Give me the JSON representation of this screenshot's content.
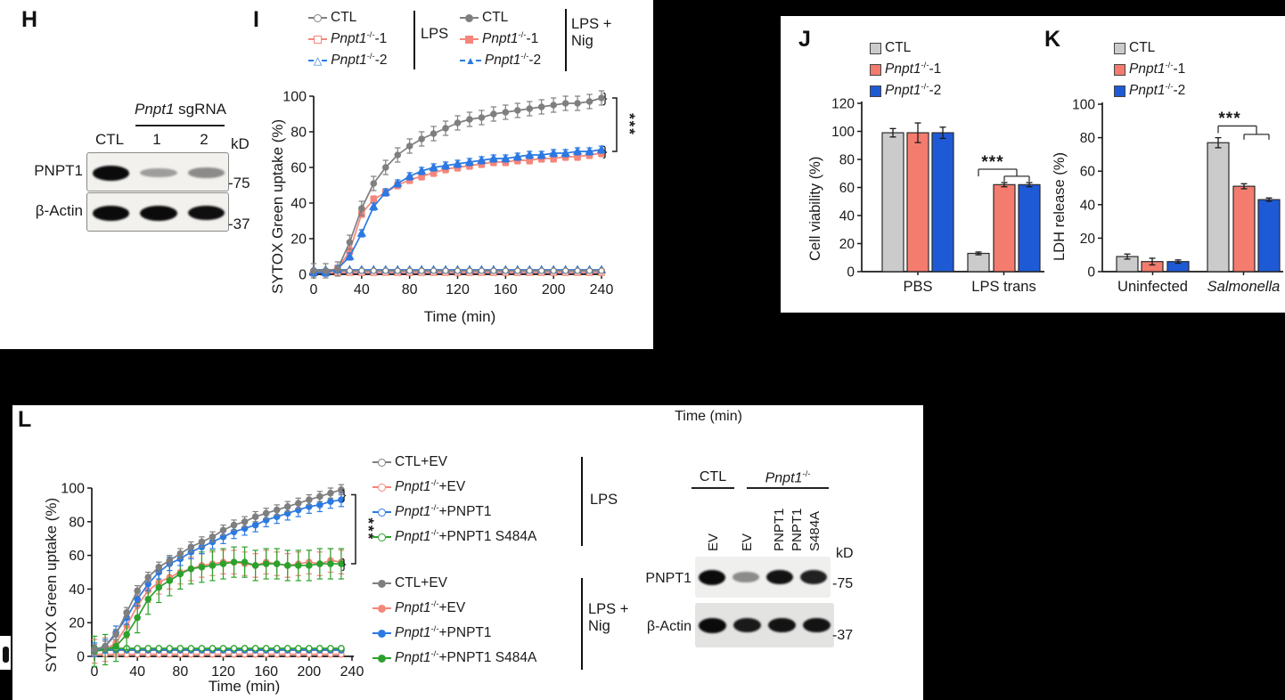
{
  "palette": {
    "gray": "#7F7F7F",
    "salmon": "#F5867B",
    "blue": "#2B79E3",
    "green": "#2CA12C",
    "bar_gray": "#CBCBCB",
    "salmon_bar": "#F47C6E",
    "blue_bar": "#1F5AD6",
    "ink": "#1A1A1A"
  },
  "panel_h": {
    "label": "H",
    "blot": {
      "header": {
        "gene": "Pnpt1",
        "rest": " sgRNA"
      },
      "lanes": [
        "CTL",
        "1",
        "2"
      ],
      "kd": "kD",
      "rows": [
        {
          "label": "PNPT1",
          "marker": "-75",
          "bands": [
            1,
            0.22,
            0.32
          ]
        },
        {
          "label": "β-Actin",
          "marker": "-37",
          "bands": [
            1,
            1,
            0.97
          ]
        }
      ]
    }
  },
  "panel_i": {
    "label": "I",
    "legend": {
      "groups": [
        {
          "treatment": "LPS",
          "entries": [
            {
              "marker": "open-circle",
              "color": "gray",
              "rest": "CTL"
            },
            {
              "marker": "open-square",
              "color": "salmon",
              "gene": "Pnpt1",
              "sup": "-/-",
              "rest": "-1"
            },
            {
              "marker": "open-triangle",
              "color": "blue",
              "gene": "Pnpt1",
              "sup": "-/-",
              "rest": "-2"
            }
          ]
        },
        {
          "treatment": "LPS + Nig",
          "entries": [
            {
              "marker": "filled-circle",
              "color": "gray",
              "rest": "CTL"
            },
            {
              "marker": "filled-square",
              "color": "salmon",
              "gene": "Pnpt1",
              "sup": "-/-",
              "rest": "-1"
            },
            {
              "marker": "filled-triangle",
              "color": "blue",
              "gene": "Pnpt1",
              "sup": "-/-",
              "rest": "-2"
            }
          ]
        }
      ]
    }
  },
  "panel_j": {
    "label": "J",
    "legend": {
      "entries": [
        {
          "color": "bar_gray",
          "rest": "CTL"
        },
        {
          "color": "salmon_bar",
          "gene": "Pnpt1",
          "sup": "-/-",
          "rest": "-1"
        },
        {
          "color": "blue_bar",
          "gene": "Pnpt1",
          "sup": "-/-",
          "rest": "-2"
        }
      ]
    }
  },
  "panel_k": {
    "label": "K",
    "legend": {
      "entries": [
        {
          "color": "bar_gray",
          "rest": "CTL"
        },
        {
          "color": "salmon_bar",
          "gene": "Pnpt1",
          "sup": "-/-",
          "rest": "-1"
        },
        {
          "color": "blue_bar",
          "gene": "Pnpt1",
          "sup": "-/-",
          "rest": "-2"
        }
      ]
    }
  },
  "panel_l": {
    "label": "L",
    "floating_xlabel": "Time (min)",
    "legend": {
      "groups": [
        {
          "treatment": "LPS",
          "entries": [
            {
              "marker": "open-circle",
              "color": "gray",
              "rest": "CTL+EV"
            },
            {
              "marker": "open-circle",
              "color": "salmon",
              "gene": "Pnpt1",
              "sup": "-/-",
              "rest": "+EV"
            },
            {
              "marker": "open-circle",
              "color": "blue",
              "gene": "Pnpt1",
              "sup": "-/-",
              "rest": "+PNPT1"
            },
            {
              "marker": "open-circle",
              "color": "green",
              "gene": "Pnpt1",
              "sup": "-/-",
              "rest": "+PNPT1 S484A"
            }
          ]
        },
        {
          "treatment": "LPS + Nig",
          "entries": [
            {
              "marker": "filled-circle",
              "color": "gray",
              "rest": "CTL+EV"
            },
            {
              "marker": "filled-circle",
              "color": "salmon",
              "gene": "Pnpt1",
              "sup": "-/-",
              "rest": "+EV"
            },
            {
              "marker": "filled-circle",
              "color": "blue",
              "gene": "Pnpt1",
              "sup": "-/-",
              "rest": "+PNPT1"
            },
            {
              "marker": "filled-circle",
              "color": "green",
              "gene": "Pnpt1",
              "sup": "-/-",
              "rest": "+PNPT1 S484A"
            }
          ]
        }
      ]
    },
    "blot": {
      "headers": [
        {
          "text": "CTL"
        },
        {
          "gene": "Pnpt1",
          "sup": "-/-"
        }
      ],
      "lanes": [
        "EV",
        "EV",
        "PNPT1",
        "PNPT1",
        "S484A"
      ],
      "kd": "kD",
      "rows": [
        {
          "label": "PNPT1",
          "marker": "-75",
          "bands": [
            1,
            0.3,
            0.95,
            0.88
          ]
        },
        {
          "label": "β-Actin",
          "marker": "-37",
          "bands": [
            1,
            0.92,
            0.95,
            0.95
          ]
        }
      ]
    }
  },
  "chart_data": [
    {
      "id": "I",
      "type": "line",
      "title": "",
      "xlabel": "Time (min)",
      "ylabel": "SYTOX Green uptake (%)",
      "xlim": [
        0,
        240
      ],
      "ylim": [
        0,
        100
      ],
      "xticks": [
        0,
        40,
        80,
        120,
        160,
        200,
        240
      ],
      "yticks": [
        0,
        20,
        40,
        60,
        80,
        100
      ],
      "grid": false,
      "sig": "***",
      "x": [
        0,
        10,
        20,
        30,
        40,
        50,
        60,
        70,
        80,
        90,
        100,
        110,
        120,
        130,
        140,
        150,
        160,
        170,
        180,
        190,
        200,
        210,
        220,
        230,
        240
      ],
      "series": [
        {
          "name": "Pnpt1-/--1 LPS",
          "color": "salmon",
          "marker": "square",
          "filled": false,
          "err": 0,
          "values": [
            1,
            1,
            1,
            1,
            1,
            1,
            1,
            1,
            1,
            1,
            1,
            1,
            1,
            1,
            1,
            1,
            1,
            1,
            1,
            1,
            1,
            1,
            1,
            1,
            1
          ]
        },
        {
          "name": "Pnpt1-/--2 LPS",
          "color": "blue",
          "marker": "triangle",
          "filled": false,
          "err": 0,
          "values": [
            2.5,
            2.5,
            2.5,
            2.5,
            2.5,
            2.5,
            2.5,
            2.5,
            2.5,
            2.5,
            2.5,
            2.5,
            2.5,
            2.5,
            2.5,
            2.5,
            2.5,
            2.5,
            2.5,
            2.5,
            2.5,
            2.5,
            2.5,
            2.5,
            2.5
          ]
        },
        {
          "name": "CTL LPS",
          "color": "gray",
          "marker": "circle",
          "filled": false,
          "err": 0,
          "values": [
            2,
            2,
            2,
            2,
            2,
            2,
            2,
            2,
            2,
            2,
            2,
            2,
            2,
            2,
            2,
            2,
            2,
            2,
            2,
            2,
            2,
            2,
            2,
            2,
            2
          ]
        },
        {
          "name": "Pnpt1-/--1 LPS+Nig",
          "color": "salmon",
          "marker": "square",
          "filled": true,
          "err": 2,
          "values": [
            1,
            1,
            3,
            13,
            34,
            42,
            46,
            50,
            53,
            55,
            57,
            59,
            60,
            61,
            62,
            63,
            63,
            64,
            64,
            65,
            65,
            66,
            66,
            67,
            68
          ]
        },
        {
          "name": "Pnpt1-/--2 LPS+Nig",
          "color": "blue",
          "marker": "triangle",
          "filled": true,
          "err": 2,
          "values": [
            1,
            1,
            3,
            10,
            23,
            38,
            46,
            51,
            55,
            58,
            60,
            61,
            62,
            63,
            64,
            65,
            65,
            66,
            67,
            67,
            68,
            68,
            69,
            69,
            70
          ]
        },
        {
          "name": "CTL LPS+Nig",
          "color": "gray",
          "marker": "circle",
          "filled": true,
          "err": 4,
          "values": [
            2,
            2,
            3,
            18,
            37,
            51,
            60,
            67,
            72,
            76,
            79,
            82,
            85,
            87,
            88,
            90,
            91,
            92,
            93,
            94,
            95,
            96,
            96,
            97,
            99
          ]
        }
      ]
    },
    {
      "id": "J",
      "type": "bar",
      "ylabel": "Cell viability (%)",
      "ylim": [
        0,
        120
      ],
      "yticks": [
        0,
        20,
        40,
        60,
        80,
        100,
        120
      ],
      "sig": "***",
      "categories": [
        {
          "label": "PBS"
        },
        {
          "label": "LPS trans"
        }
      ],
      "series": [
        {
          "name": "CTL",
          "color": "bar_gray",
          "values": [
            99,
            13
          ],
          "err": [
            3,
            1
          ]
        },
        {
          "name": "Pnpt1-/--1",
          "color": "salmon_bar",
          "values": [
            99,
            62
          ],
          "err": [
            7,
            1.5
          ]
        },
        {
          "name": "Pnpt1-/--2",
          "color": "blue_bar",
          "values": [
            99,
            62
          ],
          "err": [
            4,
            1.5
          ]
        }
      ]
    },
    {
      "id": "K",
      "type": "bar",
      "ylabel": "LDH release (%)",
      "ylim": [
        0,
        100
      ],
      "yticks": [
        0,
        20,
        40,
        60,
        80,
        100
      ],
      "sig": "***",
      "categories": [
        {
          "label": "Uninfected"
        },
        {
          "label": "Salmonella",
          "italic": true
        }
      ],
      "series": [
        {
          "name": "CTL",
          "color": "bar_gray",
          "values": [
            9,
            77
          ],
          "err": [
            1.5,
            3
          ]
        },
        {
          "name": "Pnpt1-/--1",
          "color": "salmon_bar",
          "values": [
            6,
            51
          ],
          "err": [
            2,
            1.5
          ]
        },
        {
          "name": "Pnpt1-/--2",
          "color": "blue_bar",
          "values": [
            6,
            43
          ],
          "err": [
            1,
            1
          ]
        }
      ]
    },
    {
      "id": "L",
      "type": "line",
      "title": "",
      "xlabel": "Time (min)",
      "ylabel": "SYTOX Green uptake (%)",
      "xlim": [
        0,
        240
      ],
      "ylim": [
        0,
        100
      ],
      "xticks": [
        0,
        40,
        80,
        120,
        160,
        200,
        240
      ],
      "yticks": [
        0,
        20,
        40,
        60,
        80,
        100
      ],
      "grid": false,
      "sig": "***",
      "x": [
        0,
        10,
        20,
        30,
        40,
        50,
        60,
        70,
        80,
        90,
        100,
        110,
        120,
        130,
        140,
        150,
        160,
        170,
        180,
        190,
        200,
        210,
        220,
        230
      ],
      "series": [
        {
          "name": "Pnpt1-/-+EV LPS",
          "color": "salmon",
          "marker": "circle",
          "filled": false,
          "err": 0,
          "values": [
            1.2,
            1.2,
            1.2,
            1.2,
            1.2,
            1.2,
            1.2,
            1.2,
            1.2,
            1.2,
            1.2,
            1.2,
            1.2,
            1.2,
            1.2,
            1.2,
            1.2,
            1.2,
            1.2,
            1.2,
            1.2,
            1.2,
            1.2,
            1.2
          ]
        },
        {
          "name": "CTL+EV LPS",
          "color": "gray",
          "marker": "circle",
          "filled": false,
          "err": 0,
          "values": [
            3.6,
            3.6,
            3.6,
            3.6,
            3.6,
            3.6,
            3.6,
            3.6,
            3.6,
            3.6,
            3.6,
            3.6,
            3.6,
            3.6,
            3.6,
            3.6,
            3.6,
            3.6,
            3.6,
            3.6,
            3.6,
            3.6,
            3.6,
            3.6
          ]
        },
        {
          "name": "Pnpt1-/-+PNPT1 LPS",
          "color": "blue",
          "marker": "circle",
          "filled": false,
          "err": 0,
          "values": [
            4,
            4,
            4,
            4,
            4,
            4,
            4,
            4,
            4,
            4,
            4,
            4,
            4,
            4,
            4,
            4,
            4,
            4,
            4,
            4,
            4,
            4,
            4,
            4
          ]
        },
        {
          "name": "Pnpt1-/-+PNPT1 S484A LPS",
          "color": "green",
          "marker": "circle",
          "filled": false,
          "err": 0,
          "values": [
            4.8,
            4.8,
            4.8,
            4.8,
            4.8,
            4.8,
            4.8,
            4.8,
            4.8,
            4.8,
            4.8,
            4.8,
            4.8,
            4.8,
            4.8,
            4.8,
            4.8,
            4.8,
            4.8,
            4.8,
            4.8,
            4.8,
            4.8,
            4.8
          ]
        },
        {
          "name": "Pnpt1-/-+EV LPS+Nig",
          "color": "salmon",
          "marker": "circle",
          "filled": true,
          "err": 7,
          "values": [
            3,
            4,
            8,
            18,
            30,
            39,
            44,
            47,
            50,
            52,
            54,
            55,
            56,
            56,
            55,
            54,
            56,
            55,
            54,
            55,
            56,
            55,
            57,
            56
          ]
        },
        {
          "name": "Pnpt1-/-+PNPT1 S484A LPS+Nig",
          "color": "green",
          "marker": "circle",
          "filled": true,
          "err": 9,
          "values": [
            3,
            4,
            6,
            13,
            23,
            34,
            41,
            45,
            49,
            52,
            53,
            54,
            55,
            56,
            56,
            54,
            55,
            55,
            54,
            54,
            54,
            55,
            55,
            55
          ]
        },
        {
          "name": "Pnpt1-/-+PNPT1 LPS+Nig",
          "color": "blue",
          "marker": "circle",
          "filled": true,
          "err": 4,
          "values": [
            4,
            6,
            14,
            23,
            34,
            43,
            50,
            55,
            58,
            62,
            65,
            68,
            71,
            74,
            76,
            78,
            81,
            83,
            85,
            87,
            89,
            90,
            92,
            93
          ]
        },
        {
          "name": "CTL+EV LPS+Nig",
          "color": "gray",
          "marker": "circle",
          "filled": true,
          "err": 3,
          "values": [
            4,
            6,
            13,
            26,
            39,
            47,
            53,
            57,
            61,
            65,
            68,
            71,
            75,
            78,
            80,
            83,
            85,
            87,
            89,
            91,
            93,
            95,
            97,
            99
          ]
        }
      ]
    }
  ]
}
